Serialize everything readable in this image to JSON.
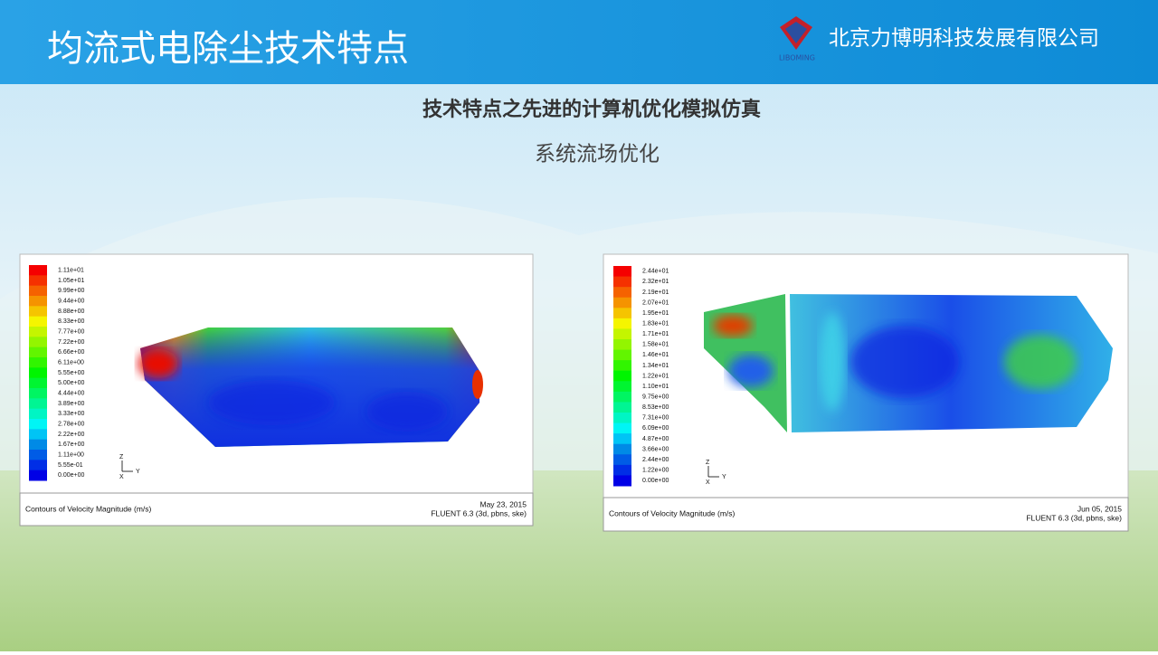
{
  "header": {
    "title": "均流式电除尘技术特点",
    "logo_text": "LIBOMING",
    "company": "北京力博明科技发展有限公司"
  },
  "heading": "技术特点之先进的计算机优化模拟仿真",
  "subheading": "系统流场优化",
  "panels": [
    {
      "legend": [
        "1.11e+01",
        "1.05e+01",
        "9.99e+00",
        "9.44e+00",
        "8.88e+00",
        "8.33e+00",
        "7.77e+00",
        "7.22e+00",
        "6.66e+00",
        "6.11e+00",
        "5.55e+00",
        "5.00e+00",
        "4.44e+00",
        "3.89e+00",
        "3.33e+00",
        "2.78e+00",
        "2.22e+00",
        "1.67e+00",
        "1.11e+00",
        "5.55e-01",
        "0.00e+00"
      ],
      "axes": {
        "z": "Z",
        "y": "Y",
        "x": "X"
      },
      "caption": "Contours of Velocity Magnitude (m/s)",
      "date": "May 23, 2015",
      "solver": "FLUENT 6.3 (3d, pbns, ske)"
    },
    {
      "legend": [
        "2.44e+01",
        "2.32e+01",
        "2.19e+01",
        "2.07e+01",
        "1.95e+01",
        "1.83e+01",
        "1.71e+01",
        "1.58e+01",
        "1.46e+01",
        "1.34e+01",
        "1.22e+01",
        "1.10e+01",
        "9.75e+00",
        "8.53e+00",
        "7.31e+00",
        "6.09e+00",
        "4.87e+00",
        "3.66e+00",
        "2.44e+00",
        "1.22e+00",
        "0.00e+00"
      ],
      "axes": {
        "z": "Z",
        "y": "Y",
        "x": "X"
      },
      "caption": "Contours of Velocity Magnitude (m/s)",
      "date": "Jun 05, 2015",
      "solver": "FLUENT 6.3 (3d, pbns, ske)"
    }
  ]
}
